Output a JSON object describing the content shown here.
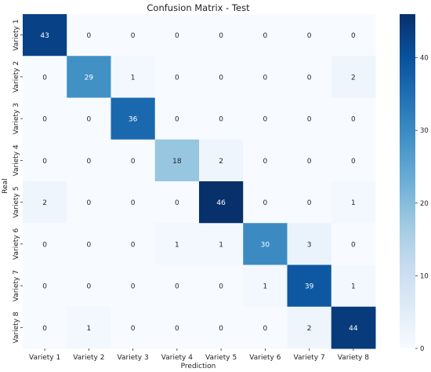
{
  "chart_data": {
    "type": "heatmap",
    "title": "Confusion Matrix - Test",
    "xlabel": "Prediction",
    "ylabel": "Real",
    "x_categories": [
      "Variety 1",
      "Variety 2",
      "Variety 3",
      "Variety 4",
      "Variety 5",
      "Variety 6",
      "Variety 7",
      "Variety 8"
    ],
    "y_categories": [
      "Variety 1",
      "Variety 2",
      "Variety 3",
      "Variety 4",
      "Variety 5",
      "Variety 6",
      "Variety 7",
      "Variety 8"
    ],
    "values": [
      [
        43,
        0,
        0,
        0,
        0,
        0,
        0,
        0
      ],
      [
        0,
        29,
        1,
        0,
        0,
        0,
        0,
        2
      ],
      [
        0,
        0,
        36,
        0,
        0,
        0,
        0,
        0
      ],
      [
        0,
        0,
        0,
        18,
        2,
        0,
        0,
        0
      ],
      [
        2,
        0,
        0,
        0,
        46,
        0,
        0,
        1
      ],
      [
        0,
        0,
        0,
        1,
        1,
        30,
        3,
        0
      ],
      [
        0,
        0,
        0,
        0,
        0,
        1,
        39,
        1
      ],
      [
        0,
        1,
        0,
        0,
        0,
        0,
        2,
        44
      ]
    ],
    "colorbar": {
      "min": 0,
      "max": 46,
      "ticks": [
        0,
        10,
        20,
        30,
        40
      ]
    },
    "colormap": "Blues",
    "grid": false
  }
}
